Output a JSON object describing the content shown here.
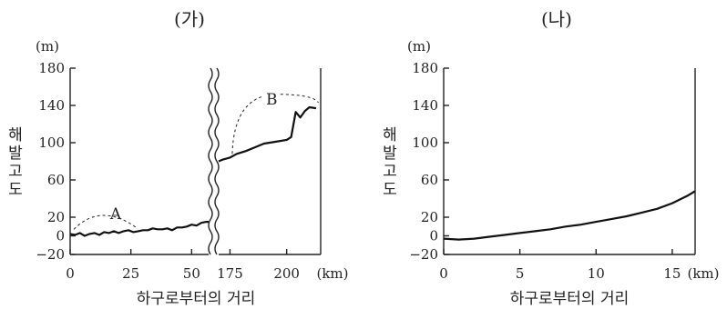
{
  "chart_data": [
    {
      "type": "line",
      "title": "(가)",
      "ylabel": "해발고도",
      "yunit": "(m)",
      "xlabel": "하구로부터의 거리",
      "xunit": "(km)",
      "ylim": [
        -20,
        180
      ],
      "yticks": [
        -20,
        0,
        20,
        60,
        100,
        140,
        180
      ],
      "axis_break": true,
      "segments": [
        {
          "xlim": [
            0,
            57
          ],
          "xticks": [
            0,
            25,
            50
          ],
          "x": [
            0,
            2,
            4,
            6,
            8,
            10,
            12,
            14,
            16,
            18,
            20,
            22,
            24,
            26,
            28,
            30,
            32,
            34,
            36,
            38,
            40,
            42,
            44,
            46,
            48,
            50,
            52,
            54,
            56,
            57
          ],
          "y": [
            2,
            1,
            3,
            0,
            2,
            3,
            1,
            4,
            3,
            5,
            3,
            5,
            6,
            4,
            5,
            6,
            6,
            8,
            7,
            7,
            8,
            6,
            9,
            9,
            10,
            12,
            11,
            14,
            15,
            15
          ]
        },
        {
          "xlim": [
            170,
            215
          ],
          "xticks": [
            175,
            200
          ],
          "x": [
            170,
            172,
            175,
            178,
            182,
            186,
            190,
            195,
            200,
            202,
            204,
            206,
            208,
            210,
            213
          ],
          "y": [
            80,
            82,
            84,
            88,
            91,
            95,
            99,
            101,
            103,
            106,
            133,
            127,
            134,
            138,
            137
          ]
        }
      ],
      "annotations": [
        {
          "text": "A",
          "x": 15,
          "y": 25
        },
        {
          "text": "B",
          "x": 195,
          "y": 147
        }
      ]
    },
    {
      "type": "line",
      "title": "(나)",
      "ylabel": "해발고도",
      "yunit": "(m)",
      "xlabel": "하구로부터의 거리",
      "xunit": "(km)",
      "ylim": [
        -20,
        180
      ],
      "yticks": [
        -20,
        0,
        20,
        60,
        100,
        140,
        180
      ],
      "xlim": [
        0,
        16.5
      ],
      "xticks": [
        0,
        5,
        10,
        15
      ],
      "x": [
        0,
        1,
        2,
        3,
        4,
        5,
        6,
        7,
        8,
        9,
        10,
        11,
        12,
        13,
        14,
        15,
        16,
        16.5
      ],
      "y": [
        -3,
        -4,
        -3,
        -1,
        1,
        3,
        5,
        7,
        10,
        12,
        15,
        18,
        21,
        25,
        29,
        35,
        43,
        48
      ]
    }
  ]
}
